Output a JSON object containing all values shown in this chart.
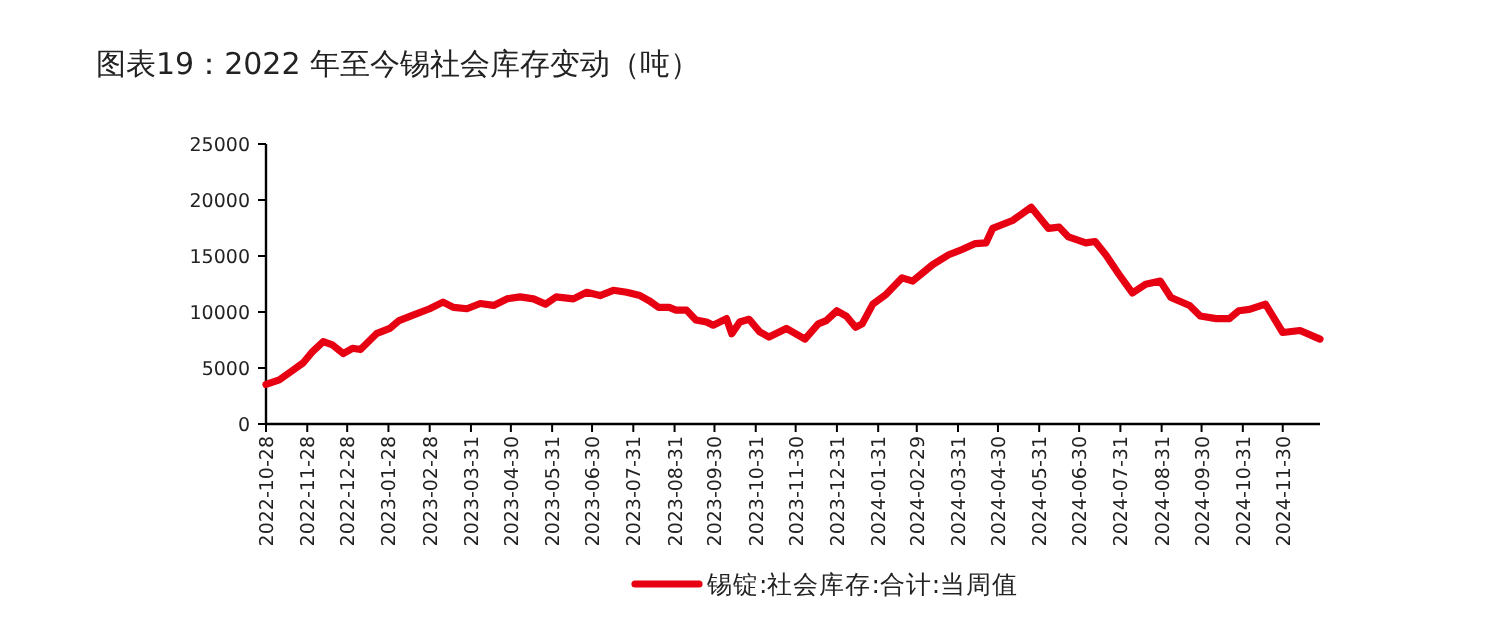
{
  "chart_data": {
    "type": "line",
    "title": "图表19：2022 年至今锡社会库存变动（吨）",
    "x": [
      "2022-10-28",
      "2022-11-07",
      "2022-11-16",
      "2022-11-25",
      "2022-12-02",
      "2022-12-10",
      "2022-12-17",
      "2022-12-25",
      "2023-01-01",
      "2023-01-07",
      "2023-01-19",
      "2023-01-29",
      "2023-02-05",
      "2023-02-15",
      "2023-02-28",
      "2023-03-10",
      "2023-03-18",
      "2023-03-28",
      "2023-04-07",
      "2023-04-17",
      "2023-04-27",
      "2023-05-07",
      "2023-05-17",
      "2023-05-26",
      "2023-06-03",
      "2023-06-16",
      "2023-06-26",
      "2023-07-06",
      "2023-07-16",
      "2023-07-26",
      "2023-08-05",
      "2023-08-12",
      "2023-08-19",
      "2023-08-27",
      "2023-09-01",
      "2023-09-09",
      "2023-09-16",
      "2023-09-24",
      "2023-09-29",
      "2023-10-04",
      "2023-10-09",
      "2023-10-13",
      "2023-10-19",
      "2023-10-26",
      "2023-11-03",
      "2023-11-10",
      "2023-11-23",
      "2023-12-07",
      "2023-12-17",
      "2023-12-23",
      "2023-12-31",
      "2024-01-07",
      "2024-01-14",
      "2024-01-19",
      "2024-01-27",
      "2024-02-06",
      "2024-02-18",
      "2024-02-26",
      "2024-03-12",
      "2024-03-24",
      "2024-04-03",
      "2024-04-13",
      "2024-04-21",
      "2024-04-26",
      "2024-05-11",
      "2024-05-25",
      "2024-06-07",
      "2024-06-15",
      "2024-06-22",
      "2024-07-05",
      "2024-07-12",
      "2024-07-20",
      "2024-07-30",
      "2024-08-09",
      "2024-08-19",
      "2024-08-30",
      "2024-09-07",
      "2024-09-21",
      "2024-09-29",
      "2024-10-11",
      "2024-10-21",
      "2024-10-28",
      "2024-11-05",
      "2024-11-17",
      "2024-11-30",
      "2024-12-13",
      "2024-12-28"
    ],
    "series": [
      {
        "name": "锡锭:社会库存:合计:当周值",
        "color": "#e60012",
        "values": [
          3530,
          3940,
          4700,
          5470,
          6470,
          7350,
          7060,
          6290,
          6760,
          6650,
          8060,
          8530,
          9230,
          9700,
          10290,
          10880,
          10410,
          10290,
          10760,
          10590,
          11170,
          11350,
          11170,
          10700,
          11350,
          11170,
          11760,
          11470,
          11940,
          11760,
          11470,
          11000,
          10410,
          10410,
          10170,
          10170,
          9290,
          9110,
          8820,
          9110,
          9410,
          8060,
          9110,
          9350,
          8230,
          7760,
          8530,
          7580,
          8940,
          9230,
          10110,
          9640,
          8640,
          8940,
          10700,
          11580,
          13050,
          12760,
          14230,
          15110,
          15580,
          16110,
          16170,
          17460,
          18170,
          19350,
          17460,
          17580,
          16700,
          16170,
          16290,
          15110,
          13350,
          11700,
          12470,
          12760,
          11290,
          10580,
          9640,
          9410,
          9410,
          10110,
          10230,
          10700,
          8170,
          8350,
          7580
        ]
      }
    ],
    "xlim": [
      "2022-10-28",
      "2024-12-28"
    ],
    "xticks": [
      "2022-10-28",
      "2022-11-28",
      "2022-12-28",
      "2023-01-28",
      "2023-02-28",
      "2023-03-31",
      "2023-04-30",
      "2023-05-31",
      "2023-06-30",
      "2023-07-31",
      "2023-08-31",
      "2023-09-30",
      "2023-10-31",
      "2023-11-30",
      "2023-12-31",
      "2024-01-31",
      "2024-02-29",
      "2024-03-31",
      "2024-04-30",
      "2024-05-31",
      "2024-06-30",
      "2024-07-31",
      "2024-08-31",
      "2024-09-30",
      "2024-10-31",
      "2024-11-30"
    ],
    "ylim": [
      0,
      25000
    ],
    "yticks": [
      0,
      5000,
      10000,
      15000,
      20000,
      25000
    ],
    "legend": "bottom"
  }
}
